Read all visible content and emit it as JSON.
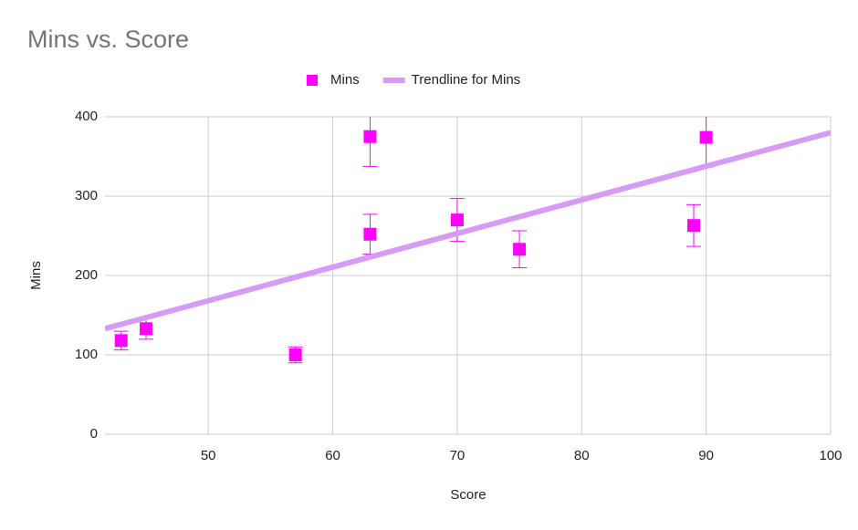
{
  "chart_data": {
    "type": "scatter",
    "title": "Mins vs. Score",
    "x_label": "Score",
    "y_label": "Mins",
    "series": [
      {
        "name": "Mins",
        "color": "#ff00ff",
        "x": [
          43,
          45,
          57,
          63,
          63,
          70,
          75,
          89,
          90
        ],
        "values": [
          118,
          133,
          100,
          375,
          252,
          270,
          233,
          263,
          374
        ],
        "errors": [
          11.8,
          13.3,
          10,
          37.5,
          25.2,
          27,
          23.3,
          26.3,
          37.4
        ]
      },
      {
        "name": "Trendline for Mins",
        "color": "#d59bf6",
        "line": true,
        "x": [
          41.7,
          100
        ],
        "values": [
          133,
          380
        ]
      }
    ],
    "xlim": [
      41.7,
      100
    ],
    "xticks": [
      50,
      60,
      70,
      80,
      90,
      100
    ],
    "ylim": [
      0,
      400
    ],
    "yticks": [
      0,
      100,
      200,
      300,
      400
    ],
    "grid": true,
    "legend": "top"
  }
}
